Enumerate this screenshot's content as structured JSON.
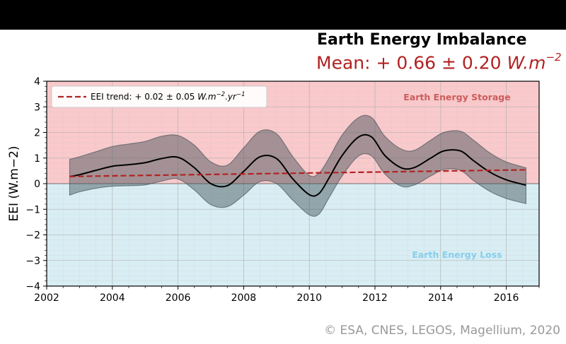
{
  "header": {
    "title": "Earth Energy Imbalance",
    "subtitle_prefix": "Mean: + 0.66 ± 0.20 ",
    "subtitle_unit": "W.m",
    "subtitle_exp": "−2"
  },
  "credit": "© ESA, CNES, LEGOS, Magellium, 2020",
  "colors": {
    "storage_bg": "#f9c9cb",
    "loss_bg": "#d8eef4",
    "band": "#3d4d55",
    "trend": "#b22222",
    "storage_text": "#cd5c5c",
    "loss_text": "#87ceeb"
  },
  "chart_data": {
    "type": "line",
    "title": "Earth Energy Imbalance",
    "ylabel": "EEI (W.m−2)",
    "xlim": [
      2002,
      2017
    ],
    "ylim": [
      -4,
      4
    ],
    "xticks": [
      2002,
      2004,
      2006,
      2008,
      2010,
      2012,
      2014,
      2016
    ],
    "yticks": [
      -4,
      -3,
      -2,
      -1,
      0,
      1,
      2,
      3,
      4
    ],
    "xtick_labels": [
      "2002",
      "2004",
      "2006",
      "2008",
      "2010",
      "2012",
      "2014",
      "2016"
    ],
    "ytick_labels": [
      "−4",
      "−3",
      "−2",
      "−1",
      "0",
      "1",
      "2",
      "3",
      "4"
    ],
    "grid": true,
    "legend": {
      "placement": "top-left",
      "label_prefix": "EEI trend: + 0.02 ± 0.05 ",
      "label_unit": "W.m",
      "label_exp1": "−2",
      "label_mid": ".yr",
      "label_exp2": "−1"
    },
    "regions": [
      {
        "label": "Earth Energy Storage",
        "x": 2014.5,
        "y": 3.25
      },
      {
        "label": "Earth Energy Loss",
        "x": 2014.5,
        "y": -2.9
      }
    ],
    "series": [
      {
        "role": "mean",
        "x": [
          2002.7,
          2003.0,
          2003.5,
          2004.0,
          2004.5,
          2005.0,
          2005.5,
          2006.0,
          2006.5,
          2007.0,
          2007.5,
          2008.0,
          2008.5,
          2009.0,
          2009.5,
          2010.0,
          2010.3,
          2010.6,
          2011.0,
          2011.5,
          2011.9,
          2012.3,
          2012.8,
          2013.2,
          2013.7,
          2014.1,
          2014.6,
          2015.0,
          2015.5,
          2016.0,
          2016.6
        ],
        "y": [
          0.28,
          0.35,
          0.52,
          0.68,
          0.74,
          0.82,
          0.98,
          1.03,
          0.62,
          0.0,
          -0.08,
          0.48,
          1.05,
          0.98,
          0.18,
          -0.43,
          -0.38,
          0.22,
          1.1,
          1.82,
          1.82,
          1.1,
          0.62,
          0.63,
          1.0,
          1.28,
          1.28,
          0.9,
          0.45,
          0.15,
          -0.06
        ]
      },
      {
        "role": "upper",
        "x": [
          2002.7,
          2003.0,
          2003.5,
          2004.0,
          2004.5,
          2005.0,
          2005.5,
          2006.0,
          2006.5,
          2007.0,
          2007.5,
          2008.0,
          2008.5,
          2009.0,
          2009.5,
          2010.0,
          2010.3,
          2010.6,
          2011.0,
          2011.5,
          2011.9,
          2012.3,
          2012.8,
          2013.2,
          2013.7,
          2014.1,
          2014.6,
          2015.0,
          2015.5,
          2016.0,
          2016.6
        ],
        "y": [
          0.95,
          1.05,
          1.25,
          1.45,
          1.55,
          1.65,
          1.85,
          1.88,
          1.5,
          0.85,
          0.72,
          1.4,
          2.05,
          1.95,
          1.05,
          0.32,
          0.42,
          1.0,
          1.9,
          2.58,
          2.58,
          1.85,
          1.35,
          1.3,
          1.7,
          2.0,
          2.05,
          1.7,
          1.2,
          0.85,
          0.62
        ]
      },
      {
        "role": "lower",
        "x": [
          2002.7,
          2003.0,
          2003.5,
          2004.0,
          2004.5,
          2005.0,
          2005.5,
          2006.0,
          2006.5,
          2007.0,
          2007.5,
          2008.0,
          2008.5,
          2009.0,
          2009.5,
          2010.0,
          2010.3,
          2010.6,
          2011.0,
          2011.5,
          2011.9,
          2012.3,
          2012.8,
          2013.2,
          2013.7,
          2014.1,
          2014.6,
          2015.0,
          2015.5,
          2016.0,
          2016.6
        ],
        "y": [
          -0.45,
          -0.32,
          -0.18,
          -0.1,
          -0.08,
          -0.05,
          0.1,
          0.18,
          -0.25,
          -0.82,
          -0.9,
          -0.45,
          0.08,
          0.0,
          -0.65,
          -1.22,
          -1.18,
          -0.55,
          0.3,
          1.08,
          1.08,
          0.38,
          -0.1,
          -0.05,
          0.3,
          0.55,
          0.52,
          0.12,
          -0.3,
          -0.58,
          -0.78
        ]
      },
      {
        "role": "trend",
        "x": [
          2002.7,
          2016.6
        ],
        "y": [
          0.28,
          0.54
        ]
      }
    ]
  }
}
